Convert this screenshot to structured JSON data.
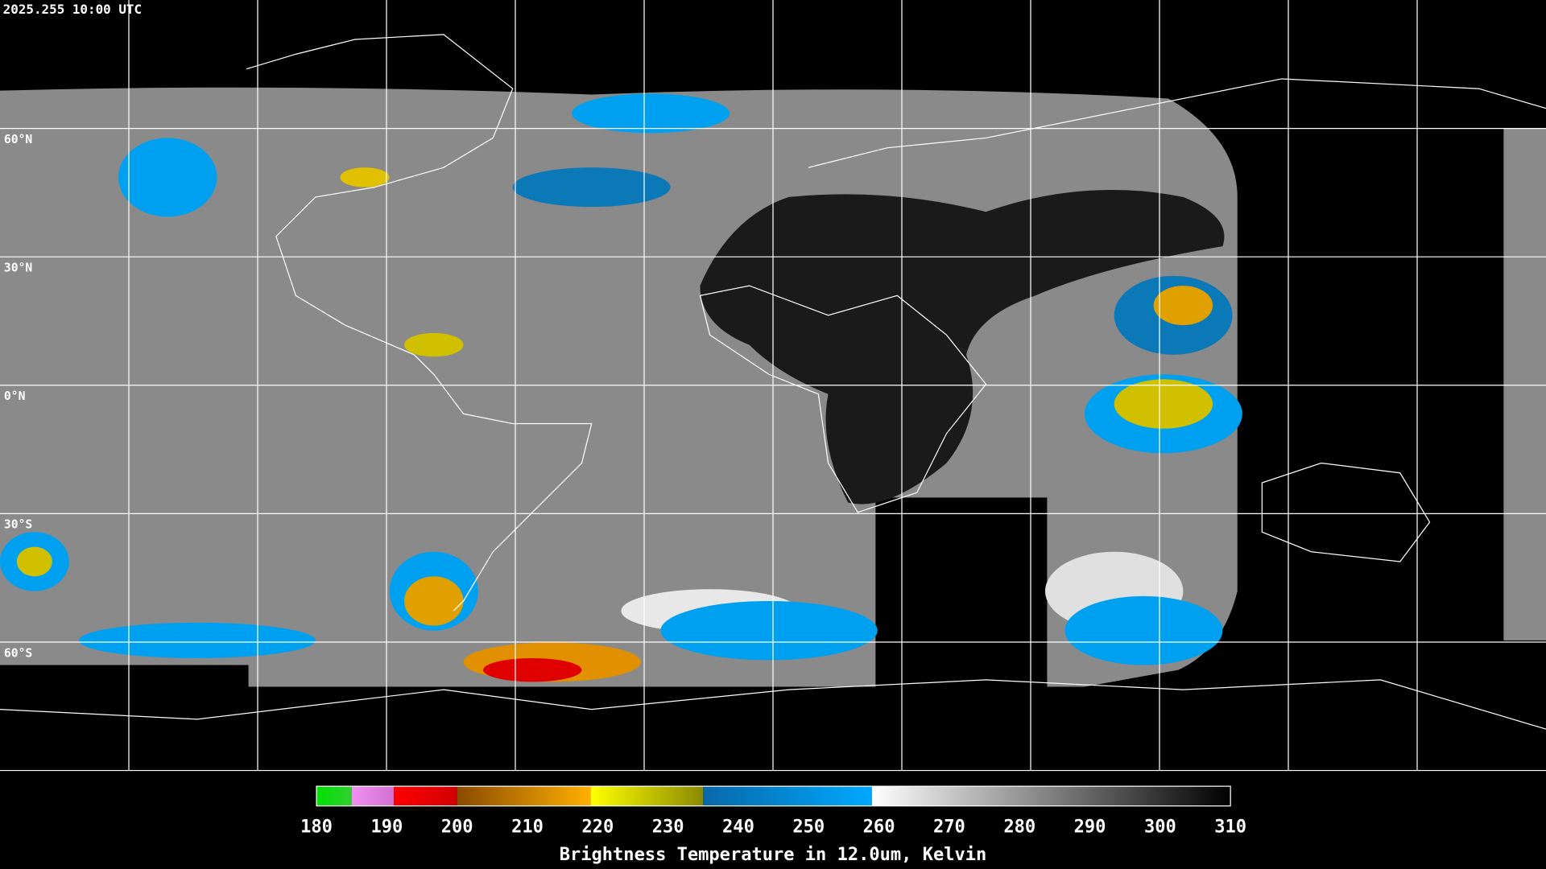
{
  "map": {
    "timestamp": "2025.255 10:00 UTC",
    "lonlim": [
      -180,
      180
    ],
    "latlim": [
      90,
      -90
    ],
    "meridians": [
      -150,
      -120,
      -90,
      -60,
      -30,
      0,
      30,
      60,
      90,
      120,
      150
    ],
    "parallels": [
      {
        "value": 60,
        "label": "60°N"
      },
      {
        "value": 30,
        "label": "30°N"
      },
      {
        "value": 0,
        "label": "0°N"
      },
      {
        "value": -30,
        "label": "30°S"
      },
      {
        "value": -60,
        "label": "60°S"
      }
    ]
  },
  "colorbar": {
    "title": "Brightness Temperature in 12.0um, Kelvin",
    "range": [
      180,
      310
    ],
    "ticks": [
      180,
      190,
      200,
      210,
      220,
      230,
      240,
      250,
      260,
      270,
      280,
      290,
      300,
      310
    ],
    "segments": [
      {
        "from": 180,
        "to": 185,
        "colors": [
          "#00e000",
          "#30d030"
        ]
      },
      {
        "from": 185,
        "to": 191,
        "colors": [
          "#f090f0",
          "#d070d0"
        ]
      },
      {
        "from": 191,
        "to": 200,
        "colors": [
          "#ff0000",
          "#d00000"
        ]
      },
      {
        "from": 200,
        "to": 219,
        "colors": [
          "#8a4a00",
          "#ffb000"
        ]
      },
      {
        "from": 219,
        "to": 235,
        "colors": [
          "#ffff00",
          "#8a8a00"
        ]
      },
      {
        "from": 235,
        "to": 259,
        "colors": [
          "#0868a8",
          "#00a8ff"
        ]
      },
      {
        "from": 259,
        "to": 310,
        "colors": [
          "#ffffff",
          "#000000"
        ]
      }
    ]
  }
}
